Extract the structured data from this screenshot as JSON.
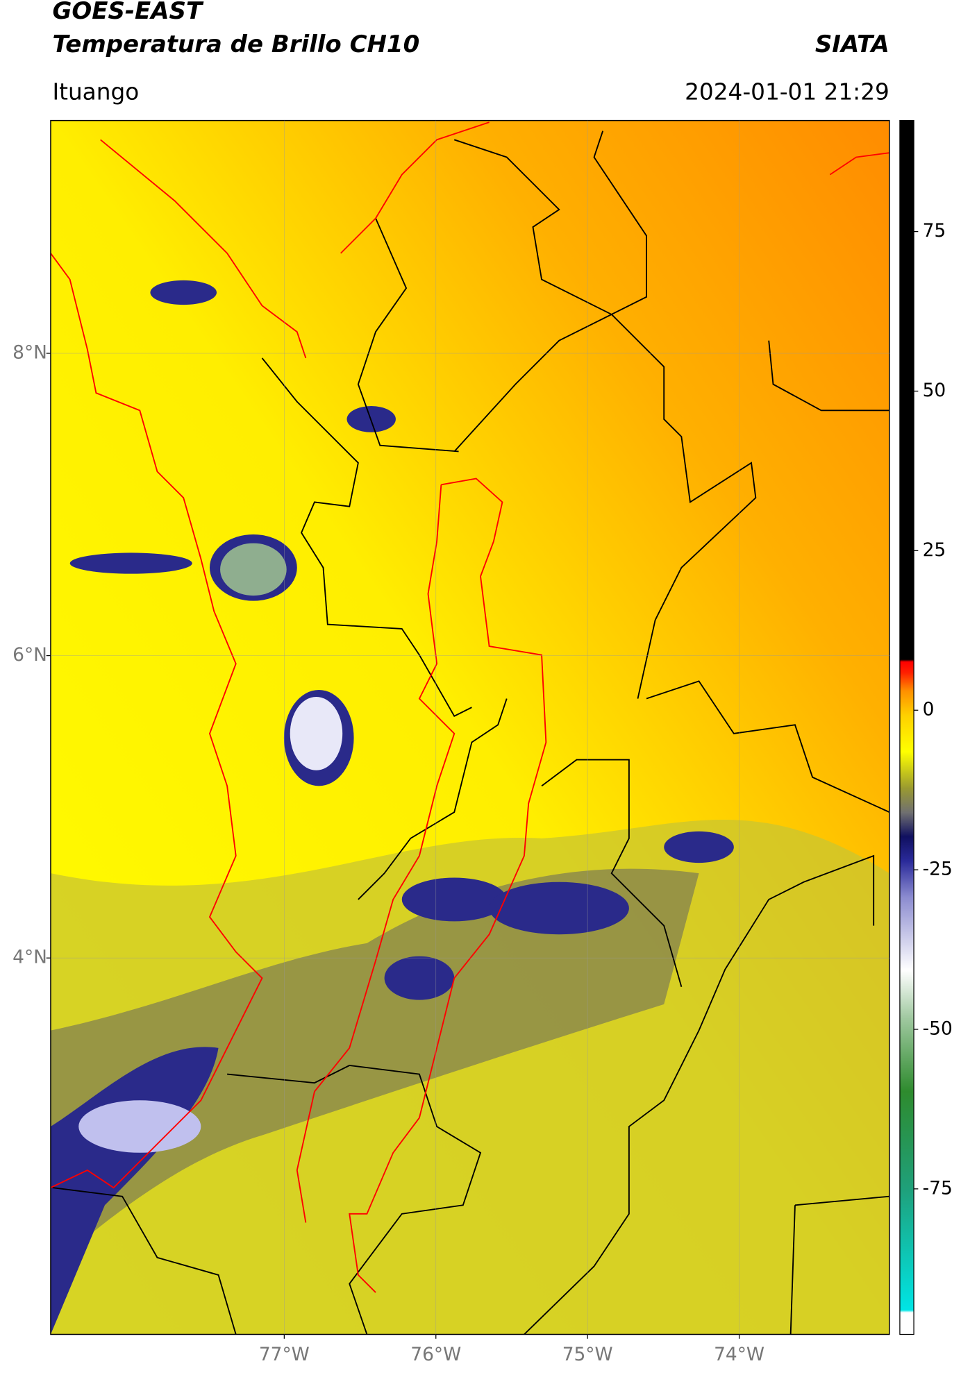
{
  "header": {
    "title": "GOES-EAST",
    "subtitle": "Temperatura de Brillo CH10",
    "organization": "SIATA",
    "location": "Ituango",
    "datetime": "2024-01-01 21:29"
  },
  "map": {
    "lon_lim": [
      -78.54,
      -73.01
    ],
    "lat_lim": [
      1.51,
      9.54
    ],
    "lon_ticks": [
      {
        "value": -77,
        "label": "77°W"
      },
      {
        "value": -76,
        "label": "76°W"
      },
      {
        "value": -75,
        "label": "75°W"
      },
      {
        "value": -74,
        "label": "74°W"
      }
    ],
    "lat_ticks": [
      {
        "value": 8,
        "label": "8°N"
      },
      {
        "value": 6,
        "label": "6°N"
      },
      {
        "value": 4,
        "label": "4°N"
      }
    ]
  },
  "colorbar": {
    "lim": [
      -97.8,
      92.4
    ],
    "ticks": [
      75,
      50,
      25,
      0,
      -25,
      -50,
      -75
    ]
  }
}
